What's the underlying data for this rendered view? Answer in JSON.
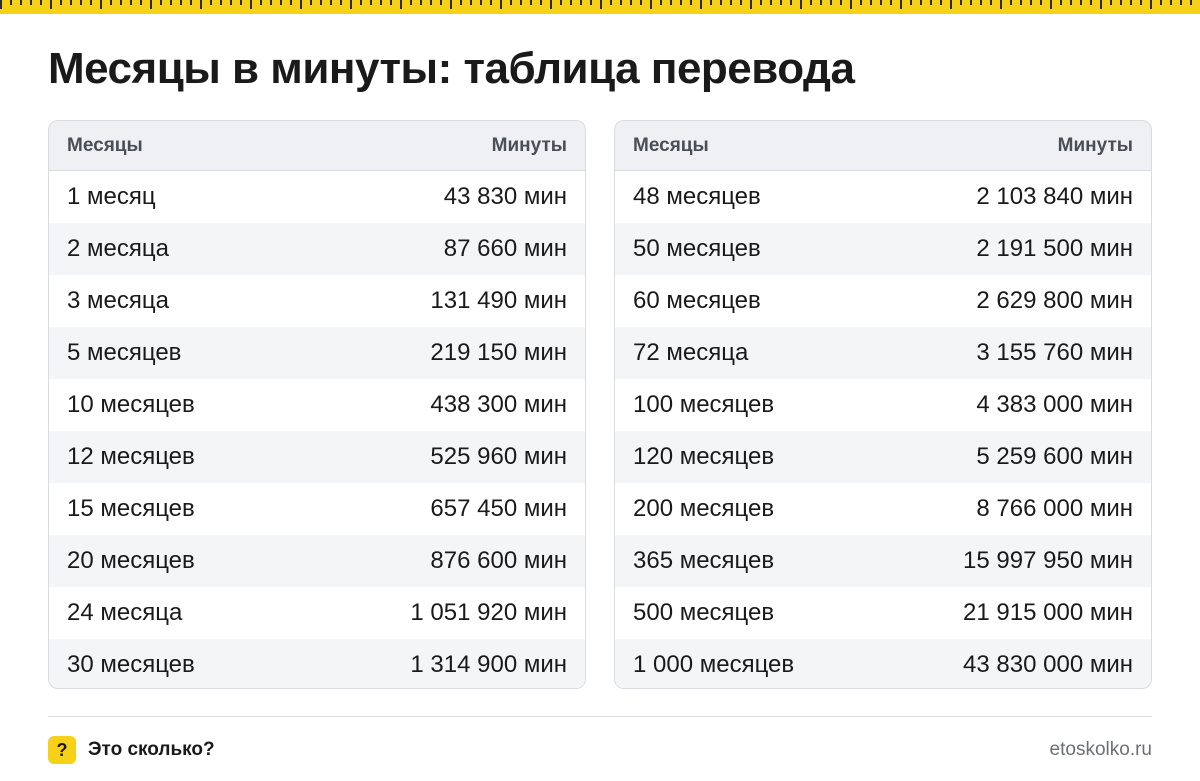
{
  "title": "Месяцы в минуты: таблица перевода",
  "headers": {
    "months": "Месяцы",
    "minutes": "Минуты"
  },
  "left_table": [
    {
      "months": "1 месяц",
      "minutes": "43 830 мин"
    },
    {
      "months": "2 месяца",
      "minutes": "87 660 мин"
    },
    {
      "months": "3 месяца",
      "minutes": "131 490 мин"
    },
    {
      "months": "5 месяцев",
      "minutes": "219 150 мин"
    },
    {
      "months": "10 месяцев",
      "minutes": "438 300 мин"
    },
    {
      "months": "12 месяцев",
      "minutes": "525 960 мин"
    },
    {
      "months": "15 месяцев",
      "minutes": "657 450 мин"
    },
    {
      "months": "20 месяцев",
      "minutes": "876 600 мин"
    },
    {
      "months": "24 месяца",
      "minutes": "1 051 920 мин"
    },
    {
      "months": "30 месяцев",
      "minutes": "1 314 900 мин"
    }
  ],
  "right_table": [
    {
      "months": "48 месяцев",
      "minutes": "2 103 840 мин"
    },
    {
      "months": "50 месяцев",
      "minutes": "2 191 500 мин"
    },
    {
      "months": "60 месяцев",
      "minutes": "2 629 800 мин"
    },
    {
      "months": "72 месяца",
      "minutes": "3 155 760 мин"
    },
    {
      "months": "100 месяцев",
      "minutes": "4 383 000 мин"
    },
    {
      "months": "120 месяцев",
      "minutes": "5 259 600 мин"
    },
    {
      "months": "200 месяцев",
      "minutes": "8 766 000 мин"
    },
    {
      "months": "365 месяцев",
      "minutes": "15 997 950 мин"
    },
    {
      "months": "500 месяцев",
      "minutes": "21 915 000 мин"
    },
    {
      "months": "1 000 месяцев",
      "minutes": "43 830 000 мин"
    }
  ],
  "footer": {
    "logo_symbol": "?",
    "brand": "Это сколько?",
    "url": "etoskolko.ru"
  },
  "colors": {
    "accent": "#f7d117",
    "header_bg": "#eef0f3",
    "stripe_bg": "#f4f5f7"
  }
}
